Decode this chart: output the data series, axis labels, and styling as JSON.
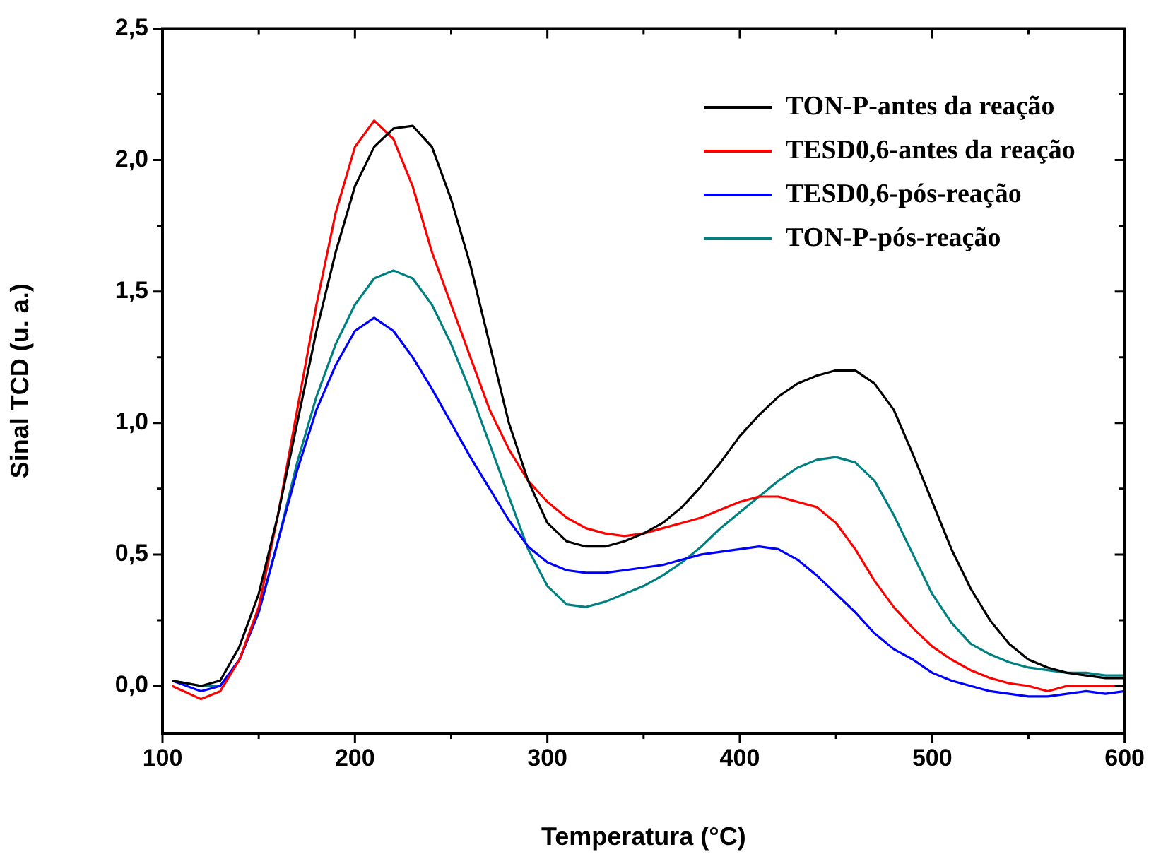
{
  "chart_data": {
    "type": "line",
    "xlabel": "Temperatura (°C)",
    "ylabel": "Sinal TCD (u. a.)",
    "x": [
      105,
      120,
      130,
      140,
      150,
      160,
      170,
      180,
      190,
      200,
      210,
      220,
      230,
      240,
      250,
      260,
      270,
      280,
      290,
      300,
      310,
      320,
      330,
      340,
      350,
      360,
      370,
      380,
      390,
      400,
      410,
      420,
      430,
      440,
      450,
      460,
      470,
      480,
      490,
      500,
      510,
      520,
      530,
      540,
      550,
      560,
      570,
      580,
      590,
      600
    ],
    "series": [
      {
        "name": "TON-P-antes da reação",
        "color": "#000000",
        "values": [
          0.02,
          0.0,
          0.02,
          0.15,
          0.35,
          0.65,
          1.0,
          1.35,
          1.65,
          1.9,
          2.05,
          2.12,
          2.13,
          2.05,
          1.85,
          1.6,
          1.3,
          1.0,
          0.78,
          0.62,
          0.55,
          0.53,
          0.53,
          0.55,
          0.58,
          0.62,
          0.68,
          0.76,
          0.85,
          0.95,
          1.03,
          1.1,
          1.15,
          1.18,
          1.2,
          1.2,
          1.15,
          1.05,
          0.88,
          0.7,
          0.52,
          0.37,
          0.25,
          0.16,
          0.1,
          0.07,
          0.05,
          0.04,
          0.03,
          0.03
        ]
      },
      {
        "name": "TESD0,6-antes da reação",
        "color": "#ff0000",
        "values": [
          0.0,
          -0.05,
          -0.02,
          0.1,
          0.3,
          0.65,
          1.05,
          1.45,
          1.8,
          2.05,
          2.15,
          2.08,
          1.9,
          1.65,
          1.45,
          1.25,
          1.05,
          0.9,
          0.78,
          0.7,
          0.64,
          0.6,
          0.58,
          0.57,
          0.58,
          0.6,
          0.62,
          0.64,
          0.67,
          0.7,
          0.72,
          0.72,
          0.7,
          0.68,
          0.62,
          0.52,
          0.4,
          0.3,
          0.22,
          0.15,
          0.1,
          0.06,
          0.03,
          0.01,
          0.0,
          -0.02,
          0.0,
          0.0,
          0.0,
          0.0
        ]
      },
      {
        "name": "TESD0,6-pós-reação",
        "color": "#0000ff",
        "values": [
          0.02,
          -0.02,
          0.0,
          0.1,
          0.28,
          0.55,
          0.82,
          1.05,
          1.22,
          1.35,
          1.4,
          1.35,
          1.25,
          1.13,
          1.0,
          0.87,
          0.75,
          0.63,
          0.53,
          0.47,
          0.44,
          0.43,
          0.43,
          0.44,
          0.45,
          0.46,
          0.48,
          0.5,
          0.51,
          0.52,
          0.53,
          0.52,
          0.48,
          0.42,
          0.35,
          0.28,
          0.2,
          0.14,
          0.1,
          0.05,
          0.02,
          0.0,
          -0.02,
          -0.03,
          -0.04,
          -0.04,
          -0.03,
          -0.02,
          -0.03,
          -0.02
        ]
      },
      {
        "name": "TON-P-pós-reação",
        "color": "#008080",
        "values": [
          0.02,
          0.0,
          0.0,
          0.1,
          0.28,
          0.55,
          0.85,
          1.1,
          1.3,
          1.45,
          1.55,
          1.58,
          1.55,
          1.45,
          1.3,
          1.12,
          0.92,
          0.72,
          0.52,
          0.38,
          0.31,
          0.3,
          0.32,
          0.35,
          0.38,
          0.42,
          0.47,
          0.53,
          0.6,
          0.66,
          0.72,
          0.78,
          0.83,
          0.86,
          0.87,
          0.85,
          0.78,
          0.65,
          0.5,
          0.35,
          0.24,
          0.16,
          0.12,
          0.09,
          0.07,
          0.06,
          0.05,
          0.05,
          0.04,
          0.04
        ]
      }
    ],
    "xlim": [
      100,
      600
    ],
    "xticks": [
      100,
      {
        "value": 150,
        "label": null
      },
      200,
      {
        "value": 250,
        "label": null
      },
      300,
      {
        "value": 350,
        "label": null
      },
      400,
      {
        "value": 450,
        "label": null
      },
      500,
      {
        "value": 550,
        "label": null
      },
      600
    ],
    "ylim": [
      -0.18,
      2.5
    ],
    "yticks": [
      {
        "value": 0,
        "label": "0,0"
      },
      {
        "value": 0.25,
        "label": null
      },
      {
        "value": 0.5,
        "label": "0,5"
      },
      {
        "value": 0.75,
        "label": null
      },
      {
        "value": 1,
        "label": "1,0"
      },
      {
        "value": 1.25,
        "label": null
      },
      {
        "value": 1.5,
        "label": "1,5"
      },
      {
        "value": 1.75,
        "label": null
      },
      {
        "value": 2,
        "label": "2,0"
      },
      {
        "value": 2.25,
        "label": null
      },
      {
        "value": 2.5,
        "label": "2,5"
      }
    ],
    "grid": false,
    "legend": "top right",
    "marker": "none",
    "line_style": "solid"
  }
}
